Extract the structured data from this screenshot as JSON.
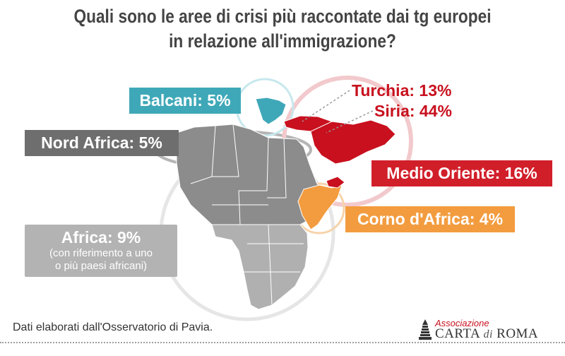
{
  "title": {
    "line1": "Quali sono le aree di crisi più raccontate dai tg europei",
    "line2": "in relazione all'immigrazione?"
  },
  "labels": {
    "balcani": "Balcani: 5%",
    "nord_africa": "Nord Africa: 5%",
    "turchia": "Turchia: 13%",
    "siria": "Siria: 44%",
    "medio_oriente": "Medio Oriente: 16%",
    "corno_africa": "Corno d'Africa: 4%",
    "africa_main": "Africa: 9%",
    "africa_sub1": "(con riferimento a uno",
    "africa_sub2": "o più paesi africani)"
  },
  "regions": [
    {
      "name": "Balcani",
      "percent": 5,
      "color": "#3fa8b8"
    },
    {
      "name": "Nord Africa",
      "percent": 5,
      "color": "#6e6e6e"
    },
    {
      "name": "Turchia",
      "percent": 13,
      "color": "#c8101e"
    },
    {
      "name": "Siria",
      "percent": 44,
      "color": "#c8101e"
    },
    {
      "name": "Medio Oriente",
      "percent": 16,
      "color": "#d11f2a"
    },
    {
      "name": "Corno d'Africa",
      "percent": 4,
      "color": "#f39c3f"
    },
    {
      "name": "Africa",
      "percent": 9,
      "color": "#b3b3b3"
    }
  ],
  "footer": {
    "source": "Dati elaborati dall'Osservatorio di Pavia."
  },
  "logo": {
    "association": "Associazione",
    "name_part1": "CARTA",
    "name_part2": "di",
    "name_part3": "ROMA"
  },
  "colors": {
    "title": "#444444",
    "africa_land": "#8c8c8c",
    "africa_south": "#b0b0b0",
    "circle_gray": "#e6e6e6",
    "circle_red": "#f2c9cc",
    "circle_teal": "#c7e8ed",
    "circle_orange": "#f7d3a9"
  }
}
